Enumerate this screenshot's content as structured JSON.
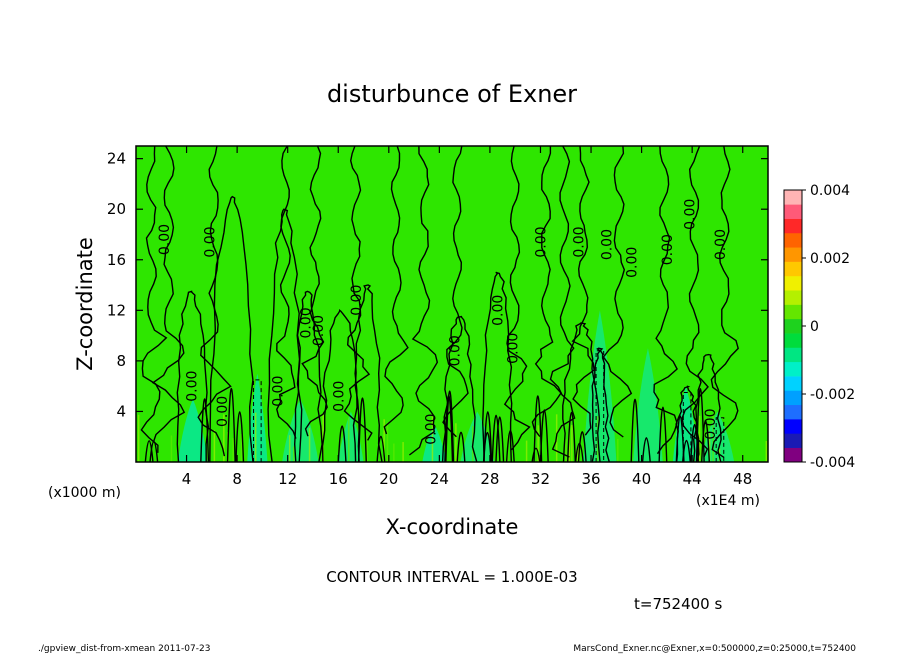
{
  "chart_data": {
    "type": "heatmap",
    "title": "disturbunce of Exner",
    "xlabel": "X-coordinate",
    "ylabel": "Z-coordinate",
    "x_unit_label": "(x1000 m)",
    "x_scale_label": "(x1E4 m)",
    "xlim": [
      0,
      50
    ],
    "ylim": [
      0,
      25
    ],
    "x_ticks": [
      "4",
      "8",
      "12",
      "16",
      "20",
      "24",
      "28",
      "32",
      "36",
      "40",
      "44",
      "48"
    ],
    "y_ticks": [
      "4",
      "8",
      "12",
      "16",
      "20",
      "24"
    ],
    "x_tick_values": [
      4,
      8,
      12,
      16,
      20,
      24,
      28,
      32,
      36,
      40,
      44,
      48
    ],
    "y_tick_values": [
      4,
      8,
      12,
      16,
      20,
      24
    ],
    "colorbar": {
      "min": -0.004,
      "max": 0.004,
      "tick_labels": [
        "0.004",
        "0.002",
        "0",
        "-0.002",
        "-0.004"
      ],
      "tick_values": [
        0.004,
        0.002,
        0,
        -0.002,
        -0.004
      ],
      "colors": [
        "#800080",
        "#1a1ab4",
        "#0000ff",
        "#1e6eff",
        "#00a0ff",
        "#00d2ff",
        "#00f0c8",
        "#00e682",
        "#00dc3c",
        "#1ed21e",
        "#64e600",
        "#b4f000",
        "#f0f000",
        "#ffc800",
        "#ff9600",
        "#ff6400",
        "#ff2828",
        "#ff5a78",
        "#ffb4b4"
      ]
    },
    "contour_label": "0.00",
    "contour_labels": [
      {
        "x": 2.6,
        "z": 17.6,
        "text": "0.00"
      },
      {
        "x": 6.2,
        "z": 17.4,
        "text": "0.00"
      },
      {
        "x": 4.8,
        "z": 6.0,
        "text": "0.00"
      },
      {
        "x": 7.2,
        "z": 4.0,
        "text": "0.00"
      },
      {
        "x": 11.6,
        "z": 5.6,
        "text": "0.00"
      },
      {
        "x": 13.8,
        "z": 11.0,
        "text": "0.00"
      },
      {
        "x": 14.8,
        "z": 10.4,
        "text": "0.00"
      },
      {
        "x": 16.4,
        "z": 5.2,
        "text": "0.00"
      },
      {
        "x": 17.8,
        "z": 12.8,
        "text": "0.00"
      },
      {
        "x": 23.7,
        "z": 2.6,
        "text": "0.00"
      },
      {
        "x": 25.6,
        "z": 8.8,
        "text": "0.00"
      },
      {
        "x": 29.0,
        "z": 12.0,
        "text": "0.00"
      },
      {
        "x": 30.2,
        "z": 9.0,
        "text": "0.00"
      },
      {
        "x": 32.4,
        "z": 17.4,
        "text": "0.00"
      },
      {
        "x": 35.4,
        "z": 17.4,
        "text": "0.00"
      },
      {
        "x": 37.6,
        "z": 17.2,
        "text": "0.00"
      },
      {
        "x": 39.6,
        "z": 15.8,
        "text": "0.00"
      },
      {
        "x": 42.4,
        "z": 16.8,
        "text": "0.00"
      },
      {
        "x": 44.2,
        "z": 19.6,
        "text": "0.00"
      },
      {
        "x": 46.6,
        "z": 17.2,
        "text": "0.00"
      },
      {
        "x": 45.8,
        "z": 3.0,
        "text": "0.00"
      }
    ],
    "contour_interval_text": "CONTOUR INTERVAL = 1.000E-03",
    "time_text": "t=752400 s",
    "footer_left": "./gpview_dist-from-xmean  2011-07-23",
    "footer_right": "MarsCond_Exner.nc@Exner,x=0:500000,z=0:25000,t=752400",
    "grid": false,
    "legend": "colorbar-right"
  },
  "colors": {
    "background_field": "#2ee600",
    "negative_patch": "#00eea0",
    "axis": "#000000"
  }
}
